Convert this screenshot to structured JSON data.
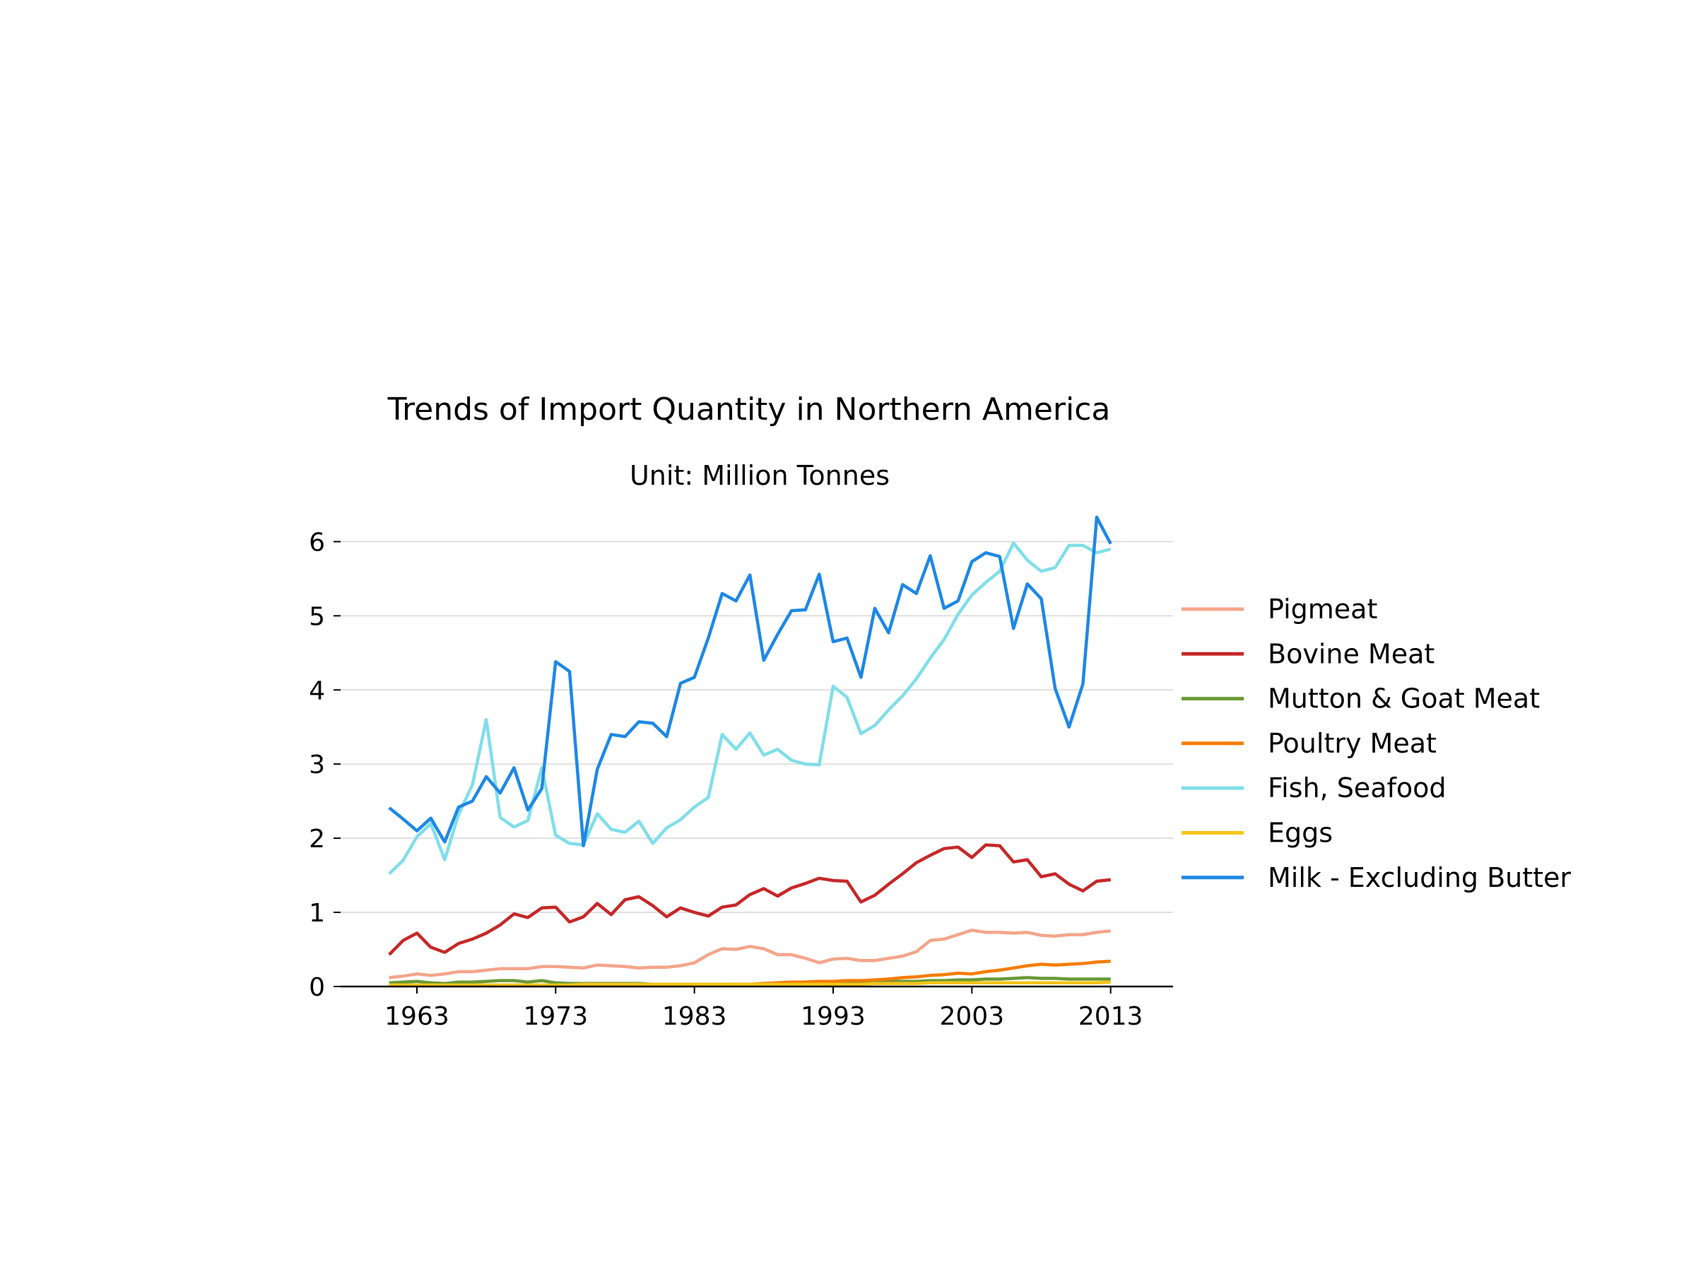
{
  "chart_data": {
    "type": "line",
    "title": "Trends of Import Quantity in Northern America",
    "subtitle": "Unit: Million Tonnes",
    "xlabel": "",
    "ylabel": "",
    "xlim": [
      1957.5,
      2017.5
    ],
    "ylim": [
      0,
      6.3
    ],
    "grid": "horizontal",
    "legend_position": "right",
    "x_ticks": [
      1963,
      1973,
      1983,
      1993,
      2003,
      2013
    ],
    "x_tick_labels": [
      "1963",
      "1973",
      "1983",
      "1993",
      "2003",
      "2013"
    ],
    "y_ticks": [
      0,
      1,
      2,
      3,
      4,
      5,
      6
    ],
    "y_tick_labels": [
      "0",
      "1",
      "2",
      "3",
      "4",
      "5",
      "6"
    ],
    "x": [
      1961,
      1962,
      1963,
      1964,
      1965,
      1966,
      1967,
      1968,
      1969,
      1970,
      1971,
      1972,
      1973,
      1974,
      1975,
      1976,
      1977,
      1978,
      1979,
      1980,
      1981,
      1982,
      1983,
      1984,
      1985,
      1986,
      1987,
      1988,
      1989,
      1990,
      1991,
      1992,
      1993,
      1994,
      1995,
      1996,
      1997,
      1998,
      1999,
      2000,
      2001,
      2002,
      2003,
      2004,
      2005,
      2006,
      2007,
      2008,
      2009,
      2010,
      2011,
      2012,
      2013
    ],
    "series": [
      {
        "name": "Pigmeat",
        "color": "#f4a58a",
        "values": [
          0.12,
          0.14,
          0.17,
          0.15,
          0.17,
          0.2,
          0.2,
          0.22,
          0.24,
          0.24,
          0.24,
          0.27,
          0.27,
          0.26,
          0.25,
          0.29,
          0.28,
          0.27,
          0.25,
          0.26,
          0.26,
          0.28,
          0.32,
          0.43,
          0.51,
          0.5,
          0.54,
          0.51,
          0.43,
          0.43,
          0.38,
          0.32,
          0.37,
          0.38,
          0.35,
          0.35,
          0.38,
          0.41,
          0.47,
          0.62,
          0.64,
          0.7,
          0.76,
          0.73,
          0.73,
          0.72,
          0.73,
          0.69,
          0.68,
          0.7,
          0.7,
          0.73,
          0.75
        ]
      },
      {
        "name": "Bovine Meat",
        "color": "#c62828",
        "values": [
          0.43,
          0.62,
          0.72,
          0.53,
          0.46,
          0.58,
          0.64,
          0.72,
          0.83,
          0.98,
          0.93,
          1.06,
          1.07,
          0.87,
          0.94,
          1.12,
          0.97,
          1.17,
          1.21,
          1.09,
          0.94,
          1.06,
          1.0,
          0.95,
          1.07,
          1.1,
          1.24,
          1.32,
          1.22,
          1.33,
          1.39,
          1.46,
          1.43,
          1.42,
          1.14,
          1.23,
          1.38,
          1.52,
          1.67,
          1.77,
          1.86,
          1.88,
          1.74,
          1.91,
          1.9,
          1.68,
          1.71,
          1.48,
          1.52,
          1.38,
          1.29,
          1.42,
          1.44
        ]
      },
      {
        "name": "Mutton & Goat Meat",
        "color": "#6a9a35",
        "values": [
          0.05,
          0.06,
          0.07,
          0.05,
          0.04,
          0.06,
          0.06,
          0.07,
          0.08,
          0.08,
          0.06,
          0.08,
          0.05,
          0.04,
          0.04,
          0.04,
          0.04,
          0.04,
          0.04,
          0.03,
          0.03,
          0.03,
          0.03,
          0.03,
          0.03,
          0.03,
          0.03,
          0.03,
          0.04,
          0.04,
          0.05,
          0.05,
          0.06,
          0.06,
          0.06,
          0.06,
          0.07,
          0.07,
          0.07,
          0.08,
          0.08,
          0.09,
          0.09,
          0.1,
          0.1,
          0.11,
          0.12,
          0.11,
          0.11,
          0.1,
          0.1,
          0.1,
          0.1
        ]
      },
      {
        "name": "Poultry Meat",
        "color": "#f57c00",
        "values": [
          0.01,
          0.01,
          0.01,
          0.01,
          0.01,
          0.01,
          0.01,
          0.01,
          0.01,
          0.01,
          0.01,
          0.01,
          0.01,
          0.01,
          0.01,
          0.01,
          0.01,
          0.01,
          0.01,
          0.01,
          0.01,
          0.01,
          0.02,
          0.02,
          0.02,
          0.03,
          0.03,
          0.04,
          0.05,
          0.06,
          0.06,
          0.07,
          0.07,
          0.08,
          0.08,
          0.09,
          0.1,
          0.12,
          0.13,
          0.15,
          0.16,
          0.18,
          0.17,
          0.2,
          0.22,
          0.25,
          0.28,
          0.3,
          0.29,
          0.3,
          0.31,
          0.33,
          0.34
        ]
      },
      {
        "name": "Fish, Seafood",
        "color": "#80deea",
        "values": [
          1.52,
          1.7,
          2.02,
          2.2,
          1.71,
          2.32,
          2.72,
          3.6,
          2.28,
          2.15,
          2.24,
          2.95,
          2.04,
          1.93,
          1.91,
          2.33,
          2.12,
          2.08,
          2.23,
          1.93,
          2.14,
          2.25,
          2.42,
          2.55,
          3.4,
          3.2,
          3.42,
          3.12,
          3.2,
          3.05,
          3.0,
          2.99,
          4.05,
          3.9,
          3.41,
          3.52,
          3.73,
          3.92,
          4.15,
          4.43,
          4.68,
          5.02,
          5.28,
          5.45,
          5.6,
          5.98,
          5.75,
          5.6,
          5.65,
          5.95,
          5.95,
          5.85,
          5.9
        ]
      },
      {
        "name": "Eggs",
        "color": "#f5c518",
        "values": [
          0.02,
          0.02,
          0.02,
          0.02,
          0.02,
          0.02,
          0.02,
          0.02,
          0.02,
          0.02,
          0.02,
          0.02,
          0.02,
          0.02,
          0.03,
          0.03,
          0.03,
          0.03,
          0.03,
          0.03,
          0.03,
          0.03,
          0.03,
          0.03,
          0.03,
          0.03,
          0.03,
          0.03,
          0.03,
          0.03,
          0.03,
          0.03,
          0.03,
          0.03,
          0.03,
          0.04,
          0.04,
          0.04,
          0.04,
          0.05,
          0.05,
          0.05,
          0.05,
          0.05,
          0.05,
          0.05,
          0.05,
          0.05,
          0.05,
          0.05,
          0.05,
          0.05,
          0.06
        ]
      },
      {
        "name": "Milk - Excluding Butter",
        "color": "#1e88e5",
        "values": [
          2.41,
          2.26,
          2.1,
          2.27,
          1.95,
          2.42,
          2.5,
          2.83,
          2.61,
          2.95,
          2.38,
          2.67,
          4.38,
          4.25,
          1.9,
          2.93,
          3.4,
          3.37,
          3.57,
          3.55,
          3.37,
          4.09,
          4.17,
          4.7,
          5.3,
          5.2,
          5.55,
          4.4,
          4.75,
          5.07,
          5.08,
          5.56,
          4.65,
          4.7,
          4.17,
          5.1,
          4.77,
          5.42,
          5.3,
          5.81,
          5.1,
          5.2,
          5.73,
          5.85,
          5.8,
          4.83,
          5.43,
          5.23,
          4.02,
          3.5,
          4.08,
          6.33,
          5.97
        ]
      }
    ]
  }
}
